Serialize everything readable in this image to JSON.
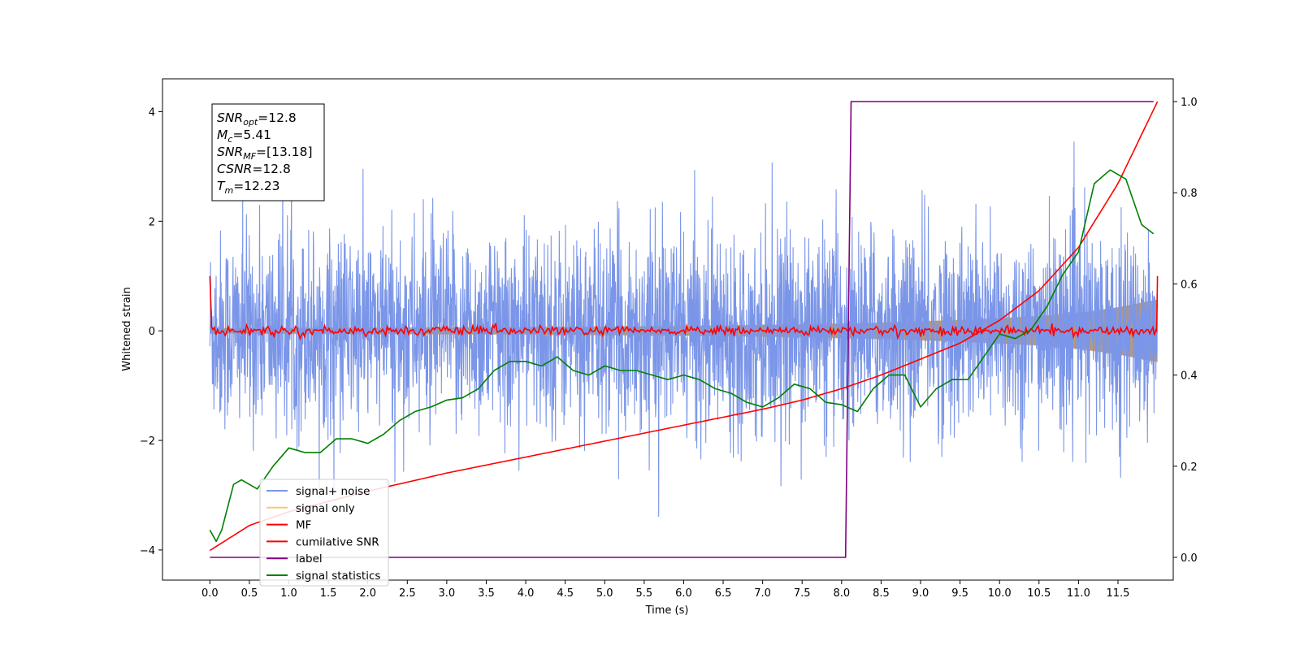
{
  "chart_data": {
    "type": "line",
    "title": "",
    "xlabel": "Time (s)",
    "ylabel": "Whitened strain",
    "xlim": [
      -0.6,
      12.2
    ],
    "ylim": [
      -4.55,
      4.6
    ],
    "ylim_right": [
      -0.05,
      1.05
    ],
    "x_ticks": [
      0.0,
      0.5,
      1.0,
      1.5,
      2.0,
      2.5,
      3.0,
      3.5,
      4.0,
      4.5,
      5.0,
      5.5,
      6.0,
      6.5,
      7.0,
      7.5,
      8.0,
      8.5,
      9.0,
      9.5,
      10.0,
      10.5,
      11.0,
      11.5
    ],
    "x_tick_labels": [
      "0.0",
      "0.5",
      "1.0",
      "1.5",
      "2.0",
      "2.5",
      "3.0",
      "3.5",
      "4.0",
      "4.5",
      "5.0",
      "5.5",
      "6.0",
      "6.5",
      "7.0",
      "7.5",
      "8.0",
      "8.5",
      "9.0",
      "9.5",
      "10.0",
      "10.5",
      "11.0",
      "11.5"
    ],
    "y_ticks": [
      -4,
      -2,
      0,
      2,
      4
    ],
    "y_tick_labels": [
      "−4",
      "−2",
      "0",
      "2",
      "4"
    ],
    "y_ticks_right": [
      0.0,
      0.2,
      0.4,
      0.6,
      0.8,
      1.0
    ],
    "y_tick_labels_right": [
      "0.0",
      "0.2",
      "0.4",
      "0.6",
      "0.8",
      "1.0"
    ],
    "grid": false,
    "legend_position": "bottom-left",
    "annotation": [
      {
        "base": "SNR",
        "sub": "opt",
        "value": "=12.8"
      },
      {
        "base": "M",
        "sub": "c",
        "value": "=5.41"
      },
      {
        "base": "SNR",
        "sub": "MF",
        "value": "=[13.18]"
      },
      {
        "base": "CSNR",
        "sub": "",
        "value": "=12.8"
      },
      {
        "base": "T",
        "sub": "m",
        "value": "=12.23"
      }
    ],
    "series": [
      {
        "name": "signal+ noise",
        "axis": "left",
        "color": "#7b96e8",
        "kind": "noise",
        "x_range": [
          0.0,
          12.0
        ],
        "std": 0.95,
        "min": -4.1,
        "max": 4.15
      },
      {
        "name": "signal only",
        "axis": "left",
        "color": "#f7c87a",
        "kind": "chirp",
        "x": [
          0.0,
          2.0,
          4.0,
          6.0,
          7.5,
          8.5,
          9.5,
          10.5,
          11.0,
          11.5,
          12.0
        ],
        "amplitude": [
          0.05,
          0.06,
          0.07,
          0.09,
          0.12,
          0.15,
          0.2,
          0.27,
          0.33,
          0.43,
          0.57
        ]
      },
      {
        "name": "MF",
        "axis": "left",
        "color": "#ff0000",
        "kind": "jitter",
        "x_range": [
          0.0,
          12.0
        ],
        "center": 0.0,
        "spread": 0.07,
        "end_values": [
          1.0,
          1.0
        ]
      },
      {
        "name": "cumilative SNR",
        "axis": "right",
        "color": "#ff0000",
        "x": [
          0.0,
          0.5,
          1.0,
          2.0,
          3.0,
          4.0,
          5.0,
          6.0,
          7.0,
          7.5,
          8.0,
          8.5,
          9.0,
          9.5,
          10.0,
          10.5,
          11.0,
          11.5,
          12.0
        ],
        "values": [
          0.015,
          0.07,
          0.1,
          0.145,
          0.185,
          0.22,
          0.255,
          0.29,
          0.325,
          0.345,
          0.37,
          0.4,
          0.435,
          0.47,
          0.52,
          0.585,
          0.68,
          0.82,
          1.0
        ]
      },
      {
        "name": "label",
        "axis": "right",
        "color": "#800080",
        "x": [
          0.0,
          8.05,
          8.12,
          11.95
        ],
        "values": [
          0.0,
          0.0,
          1.0,
          1.0
        ]
      },
      {
        "name": "signal statistics",
        "axis": "right",
        "color": "#008000",
        "x": [
          0.0,
          0.08,
          0.15,
          0.3,
          0.4,
          0.6,
          0.8,
          1.0,
          1.2,
          1.4,
          1.6,
          1.8,
          2.0,
          2.2,
          2.4,
          2.6,
          2.8,
          3.0,
          3.2,
          3.4,
          3.6,
          3.8,
          4.0,
          4.2,
          4.4,
          4.6,
          4.8,
          5.0,
          5.2,
          5.4,
          5.6,
          5.8,
          6.0,
          6.2,
          6.4,
          6.6,
          6.8,
          7.0,
          7.2,
          7.4,
          7.6,
          7.8,
          8.0,
          8.2,
          8.4,
          8.6,
          8.8,
          9.0,
          9.2,
          9.4,
          9.6,
          9.8,
          10.0,
          10.2,
          10.4,
          10.6,
          10.8,
          11.0,
          11.2,
          11.4,
          11.6,
          11.8,
          11.95
        ],
        "values": [
          0.06,
          0.035,
          0.06,
          0.16,
          0.17,
          0.15,
          0.2,
          0.24,
          0.23,
          0.23,
          0.26,
          0.26,
          0.25,
          0.27,
          0.3,
          0.32,
          0.33,
          0.345,
          0.35,
          0.37,
          0.41,
          0.43,
          0.43,
          0.42,
          0.44,
          0.41,
          0.4,
          0.42,
          0.41,
          0.41,
          0.4,
          0.39,
          0.4,
          0.39,
          0.37,
          0.36,
          0.34,
          0.33,
          0.35,
          0.38,
          0.37,
          0.34,
          0.335,
          0.32,
          0.37,
          0.4,
          0.4,
          0.33,
          0.37,
          0.39,
          0.39,
          0.44,
          0.49,
          0.48,
          0.5,
          0.55,
          0.62,
          0.67,
          0.82,
          0.85,
          0.83,
          0.73,
          0.71
        ]
      }
    ]
  }
}
